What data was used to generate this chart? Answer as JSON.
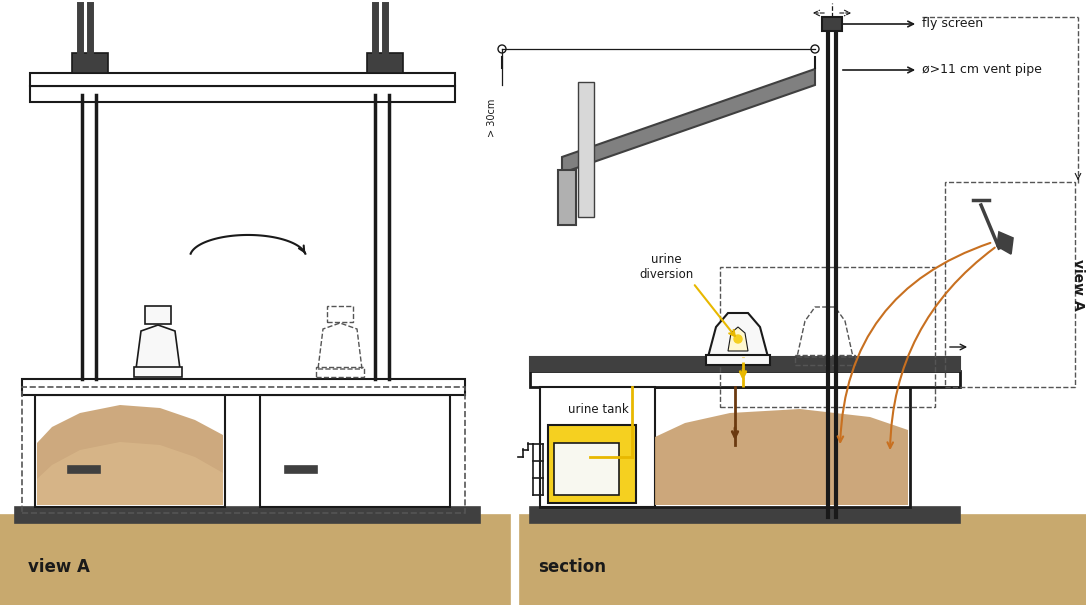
{
  "bg_color": "#ffffff",
  "ground_color": "#c8a96e",
  "wall_color": "#ffffff",
  "sand_color": "#c8a070",
  "sand_light": "#e0c090",
  "dark_gray": "#404040",
  "medium_gray": "#808080",
  "light_gray": "#b0b0b0",
  "black": "#1a1a1a",
  "toilet_white": "#f8f8f8",
  "dashed_color": "#555555",
  "label_fly_screen": "fly screen",
  "label_vent_pipe": "ø>11 cm vent pipe",
  "label_urine_diversion": "urine\ndiversion",
  "label_urine_tank": "urine tank",
  "label_view_a": "view A",
  "label_section": "section",
  "label_30cm": "> 30cm",
  "arrow_color": "#c87020",
  "yellow_line": "#e8b800",
  "urine_yellow": "#f5d020",
  "brown_pipe": "#6b3a10"
}
